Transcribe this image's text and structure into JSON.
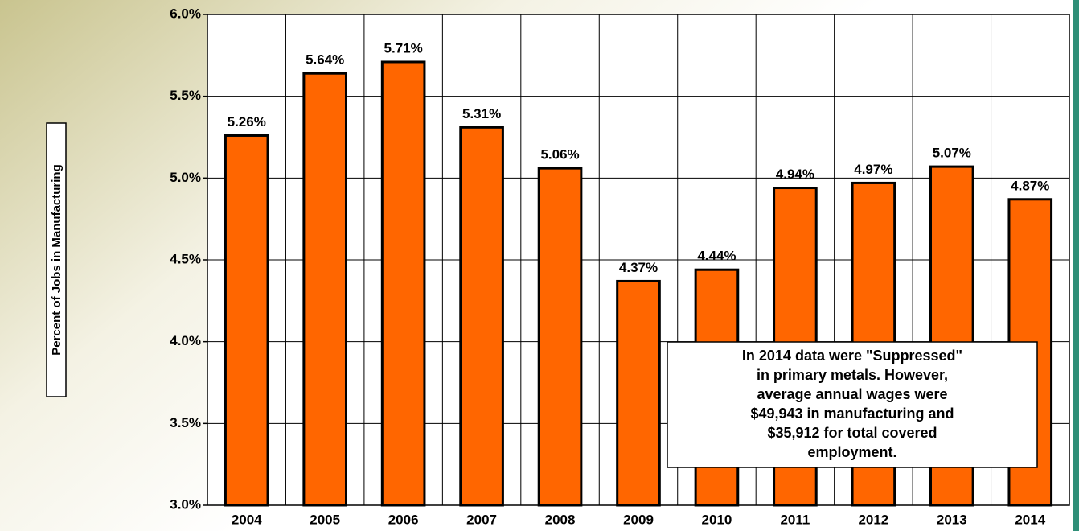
{
  "chart_data": {
    "type": "bar",
    "y_label": "Percent of Jobs in Manufacturing",
    "categories": [
      "2004",
      "2005",
      "2006",
      "2007",
      "2008",
      "2009",
      "2010",
      "2011",
      "2012",
      "2013",
      "2014"
    ],
    "values": [
      5.26,
      5.64,
      5.71,
      5.31,
      5.06,
      4.37,
      4.44,
      4.94,
      4.97,
      5.07,
      4.87
    ],
    "value_labels": [
      "5.26%",
      "5.64%",
      "5.71%",
      "5.31%",
      "5.06%",
      "4.37%",
      "4.44%",
      "4.94%",
      "4.97%",
      "5.07%",
      "4.87%"
    ],
    "color": "#ff6600",
    "ylim": [
      3,
      6
    ],
    "yticks": [
      {
        "value": 3,
        "label": "3.0%"
      },
      {
        "value": 3.5,
        "label": "3.5%"
      },
      {
        "value": 4,
        "label": "4.0%"
      },
      {
        "value": 4.5,
        "label": "4.5%"
      },
      {
        "value": 5,
        "label": "5.0%"
      },
      {
        "value": 5.5,
        "label": "5.5%"
      },
      {
        "value": 6,
        "label": "6.0%"
      }
    ],
    "grid": true,
    "annotation": [
      "In 2014 data were \"Suppressed\"",
      "in primary metals.  However,",
      "average annual wages were",
      "$49,943 in manufacturing and",
      "$35,912 for total covered",
      "employment."
    ]
  }
}
